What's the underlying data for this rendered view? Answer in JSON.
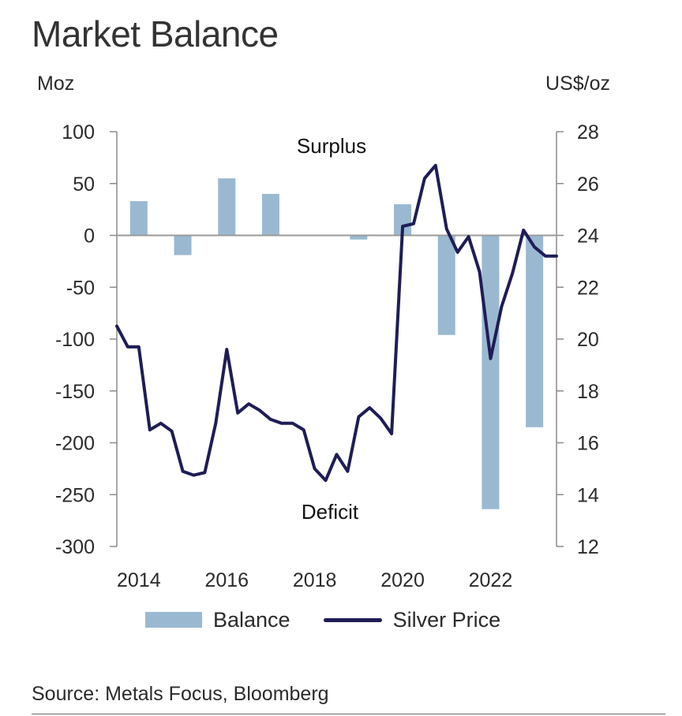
{
  "title": "Market Balance",
  "left_unit": "Moz",
  "right_unit": "US$/oz",
  "source": "Source: Metals Focus, Bloomberg",
  "colors": {
    "bar": "#9ab9d1",
    "line": "#1f1d56",
    "zero_line": "#9a9a9a",
    "axis": "#8c8c8c"
  },
  "chart_data": {
    "type": "bar+line",
    "title": "Market Balance",
    "annotations": [
      "Surplus",
      "Deficit"
    ],
    "x_tick_labels": [
      "2014",
      "2016",
      "2018",
      "2020",
      "2022"
    ],
    "x_range": [
      2013.5,
      2023.5
    ],
    "y_left": {
      "label": "Moz",
      "range": [
        -300,
        100
      ],
      "ticks": [
        100,
        50,
        0,
        -50,
        -100,
        -150,
        -200,
        -250,
        -300
      ]
    },
    "y_right": {
      "label": "US$/oz",
      "range": [
        12,
        28
      ],
      "ticks": [
        28,
        26,
        24,
        22,
        20,
        18,
        16,
        14,
        12
      ]
    },
    "legend": [
      "Balance",
      "Silver Price"
    ],
    "bar_series": {
      "name": "Balance",
      "x": [
        2014,
        2015,
        2016,
        2017,
        2018,
        2019,
        2020,
        2021,
        2022,
        2023
      ],
      "values": [
        33,
        -19,
        55,
        40,
        0,
        -4,
        30,
        -96,
        -264,
        -185
      ]
    },
    "line_series": {
      "name": "Silver Price",
      "x": [
        2013.5,
        2013.75,
        2014.0,
        2014.25,
        2014.5,
        2014.75,
        2015.0,
        2015.25,
        2015.5,
        2015.75,
        2016.0,
        2016.25,
        2016.5,
        2016.75,
        2017.0,
        2017.25,
        2017.5,
        2017.75,
        2018.0,
        2018.25,
        2018.5,
        2018.75,
        2019.0,
        2019.25,
        2019.5,
        2019.75,
        2020.0,
        2020.25,
        2020.5,
        2020.75,
        2021.0,
        2021.25,
        2021.5,
        2021.75,
        2022.0,
        2022.25,
        2022.5,
        2022.75,
        2023.0,
        2023.25,
        2023.5
      ],
      "values": [
        20.5,
        19.7,
        19.7,
        16.5,
        16.75,
        16.45,
        14.9,
        14.75,
        14.85,
        16.75,
        19.6,
        17.15,
        17.5,
        17.25,
        16.9,
        16.75,
        16.75,
        16.5,
        15.0,
        14.55,
        15.55,
        14.9,
        17.0,
        17.35,
        16.95,
        16.35,
        24.35,
        24.45,
        26.2,
        26.7,
        24.25,
        23.35,
        23.95,
        22.6,
        19.25,
        21.25,
        22.55,
        24.2,
        23.55,
        23.2,
        23.2
      ]
    }
  }
}
